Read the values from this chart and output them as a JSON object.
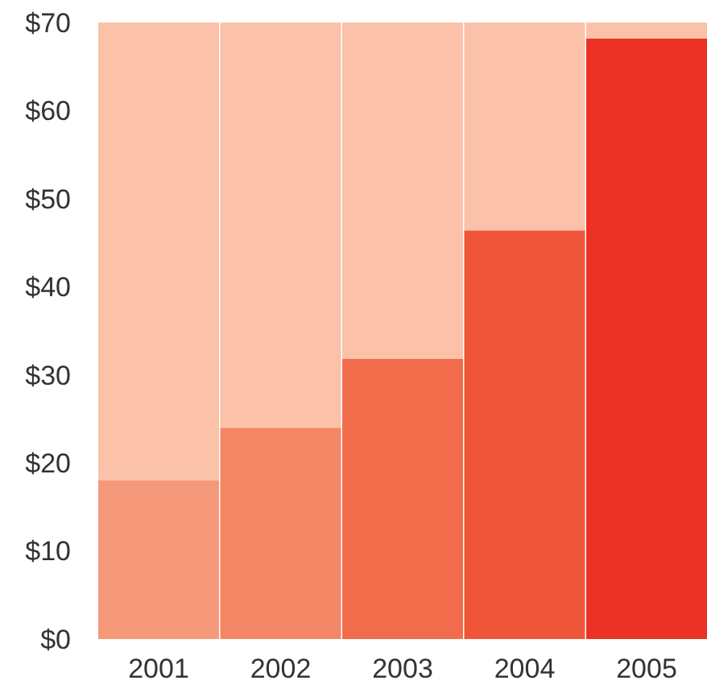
{
  "chart_data": {
    "type": "bar",
    "stacked": true,
    "categories": [
      "2001",
      "2002",
      "2003",
      "2004",
      "2005"
    ],
    "series": [
      {
        "colors": [
          "#f6987a",
          "#f38665",
          "#f06c4b",
          "#ef5539",
          "#ec3224"
        ],
        "values": [
          18,
          24,
          31.8,
          46.4,
          68.2
        ]
      },
      {
        "color": "#fbc1a9",
        "values": [
          52,
          46,
          38.2,
          23.6,
          1.8
        ]
      }
    ],
    "ylim": [
      0,
      70
    ],
    "yticks": [
      {
        "value": 0,
        "label": "$0"
      },
      {
        "value": 10,
        "label": "$10"
      },
      {
        "value": 20,
        "label": "$20"
      },
      {
        "value": 30,
        "label": "$30"
      },
      {
        "value": 40,
        "label": "$40"
      },
      {
        "value": 50,
        "label": "$50"
      },
      {
        "value": 60,
        "label": "$60"
      },
      {
        "value": 70,
        "label": "$70"
      }
    ]
  }
}
